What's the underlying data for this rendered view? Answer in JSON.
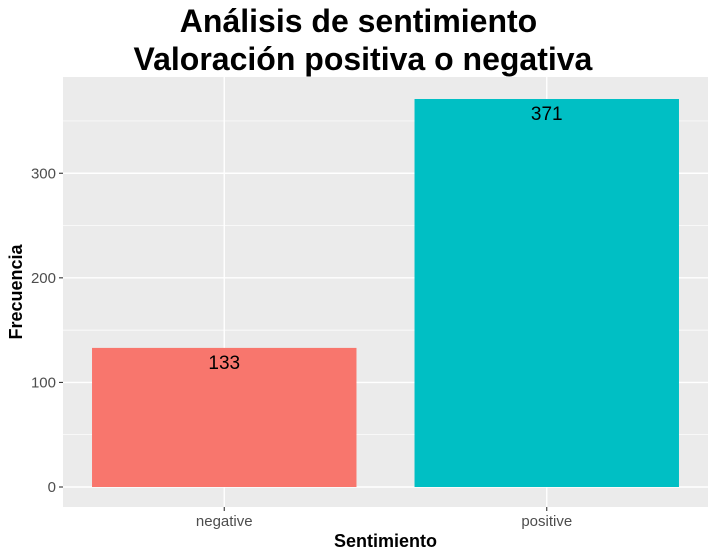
{
  "chart_data": {
    "type": "bar",
    "title": "Análisis de sentimiento",
    "subtitle": " Valoración positiva o negativa",
    "xlabel": "Sentimiento",
    "ylabel": "Frecuencia",
    "categories": [
      "negative",
      "positive"
    ],
    "values": [
      133,
      371
    ],
    "data_labels": [
      "133",
      "371"
    ],
    "colors": [
      "#F8766D",
      "#00BFC4"
    ],
    "ylim": [
      0,
      390
    ],
    "y_ticks": [
      0,
      100,
      200,
      300
    ],
    "y_tick_labels": [
      "0",
      "100",
      "200",
      "300"
    ],
    "grid": true,
    "legend": "none",
    "panel_background": "#EBEBEB",
    "grid_color": "#FFFFFF"
  }
}
